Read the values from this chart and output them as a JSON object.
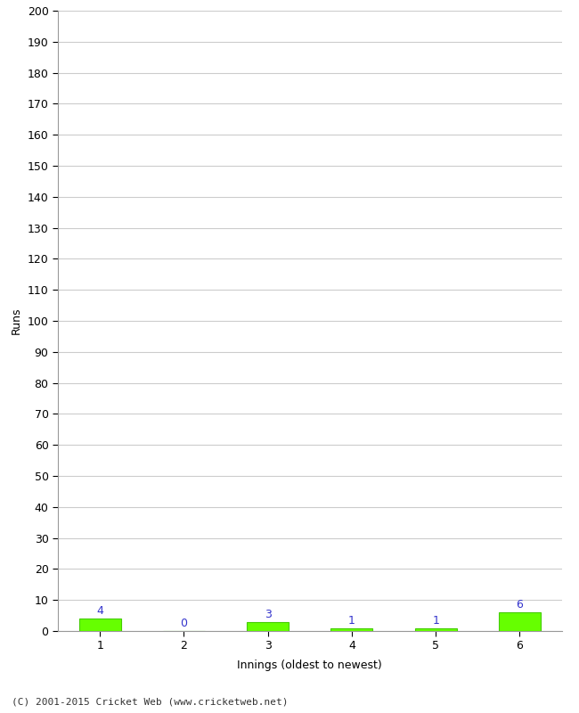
{
  "innings": [
    1,
    2,
    3,
    4,
    5,
    6
  ],
  "runs": [
    4,
    0,
    3,
    1,
    1,
    6
  ],
  "bar_color": "#66ff00",
  "bar_edge_color": "#44cc00",
  "label_color": "#3333cc",
  "ylabel": "Runs",
  "xlabel": "Innings (oldest to newest)",
  "footer": "(C) 2001-2015 Cricket Web (www.cricketweb.net)",
  "ylim": [
    0,
    200
  ],
  "yticks": [
    0,
    10,
    20,
    30,
    40,
    50,
    60,
    70,
    80,
    90,
    100,
    110,
    120,
    130,
    140,
    150,
    160,
    170,
    180,
    190,
    200
  ],
  "background_color": "#ffffff",
  "grid_color": "#cccccc",
  "bar_width": 0.5
}
